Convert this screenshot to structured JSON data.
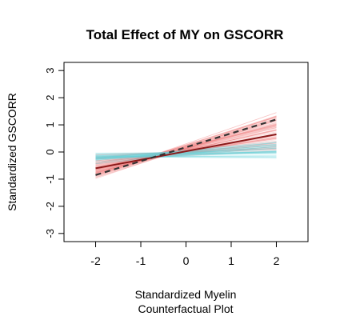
{
  "chart_data": {
    "type": "line",
    "title": "Total Effect of MY on GSCORR",
    "xlabel": "Standardized Myelin",
    "xlabel_line2": "Counterfactual Plot",
    "ylabel": "Standardized GSCORR",
    "xlim": [
      -2.7,
      2.7
    ],
    "ylim": [
      -3.3,
      3.3
    ],
    "x_ticks": [
      -2,
      -1,
      0,
      1,
      2
    ],
    "x_tick_labels": [
      "-2",
      "-1",
      "0",
      "1",
      "2"
    ],
    "y_ticks": [
      -3,
      -2,
      -1,
      0,
      1,
      2,
      3
    ],
    "y_tick_labels": [
      "-3",
      "-2",
      "-1",
      "0",
      "1",
      "2",
      "3"
    ],
    "grid": false,
    "legend": "none",
    "series": [
      {
        "style": "solid",
        "color": "#8b1a1a",
        "x": [
          -2,
          2
        ],
        "y": [
          -0.6,
          0.65
        ]
      },
      {
        "style": "dashed",
        "color": "#333333",
        "x": [
          -2,
          2
        ],
        "y": [
          -0.85,
          1.2
        ]
      }
    ],
    "bands": [
      {
        "color": "#f08080",
        "x": [
          -2,
          2
        ],
        "slope_range": [
          0.05,
          0.58
        ],
        "pivot_x": -0.55,
        "pivot_y": -0.1,
        "count": 90
      },
      {
        "color": "#66d4dc",
        "x": [
          -2,
          2
        ],
        "slope_range": [
          -0.02,
          0.18
        ],
        "pivot_x": -0.55,
        "pivot_y": -0.1,
        "count": 45
      }
    ]
  }
}
